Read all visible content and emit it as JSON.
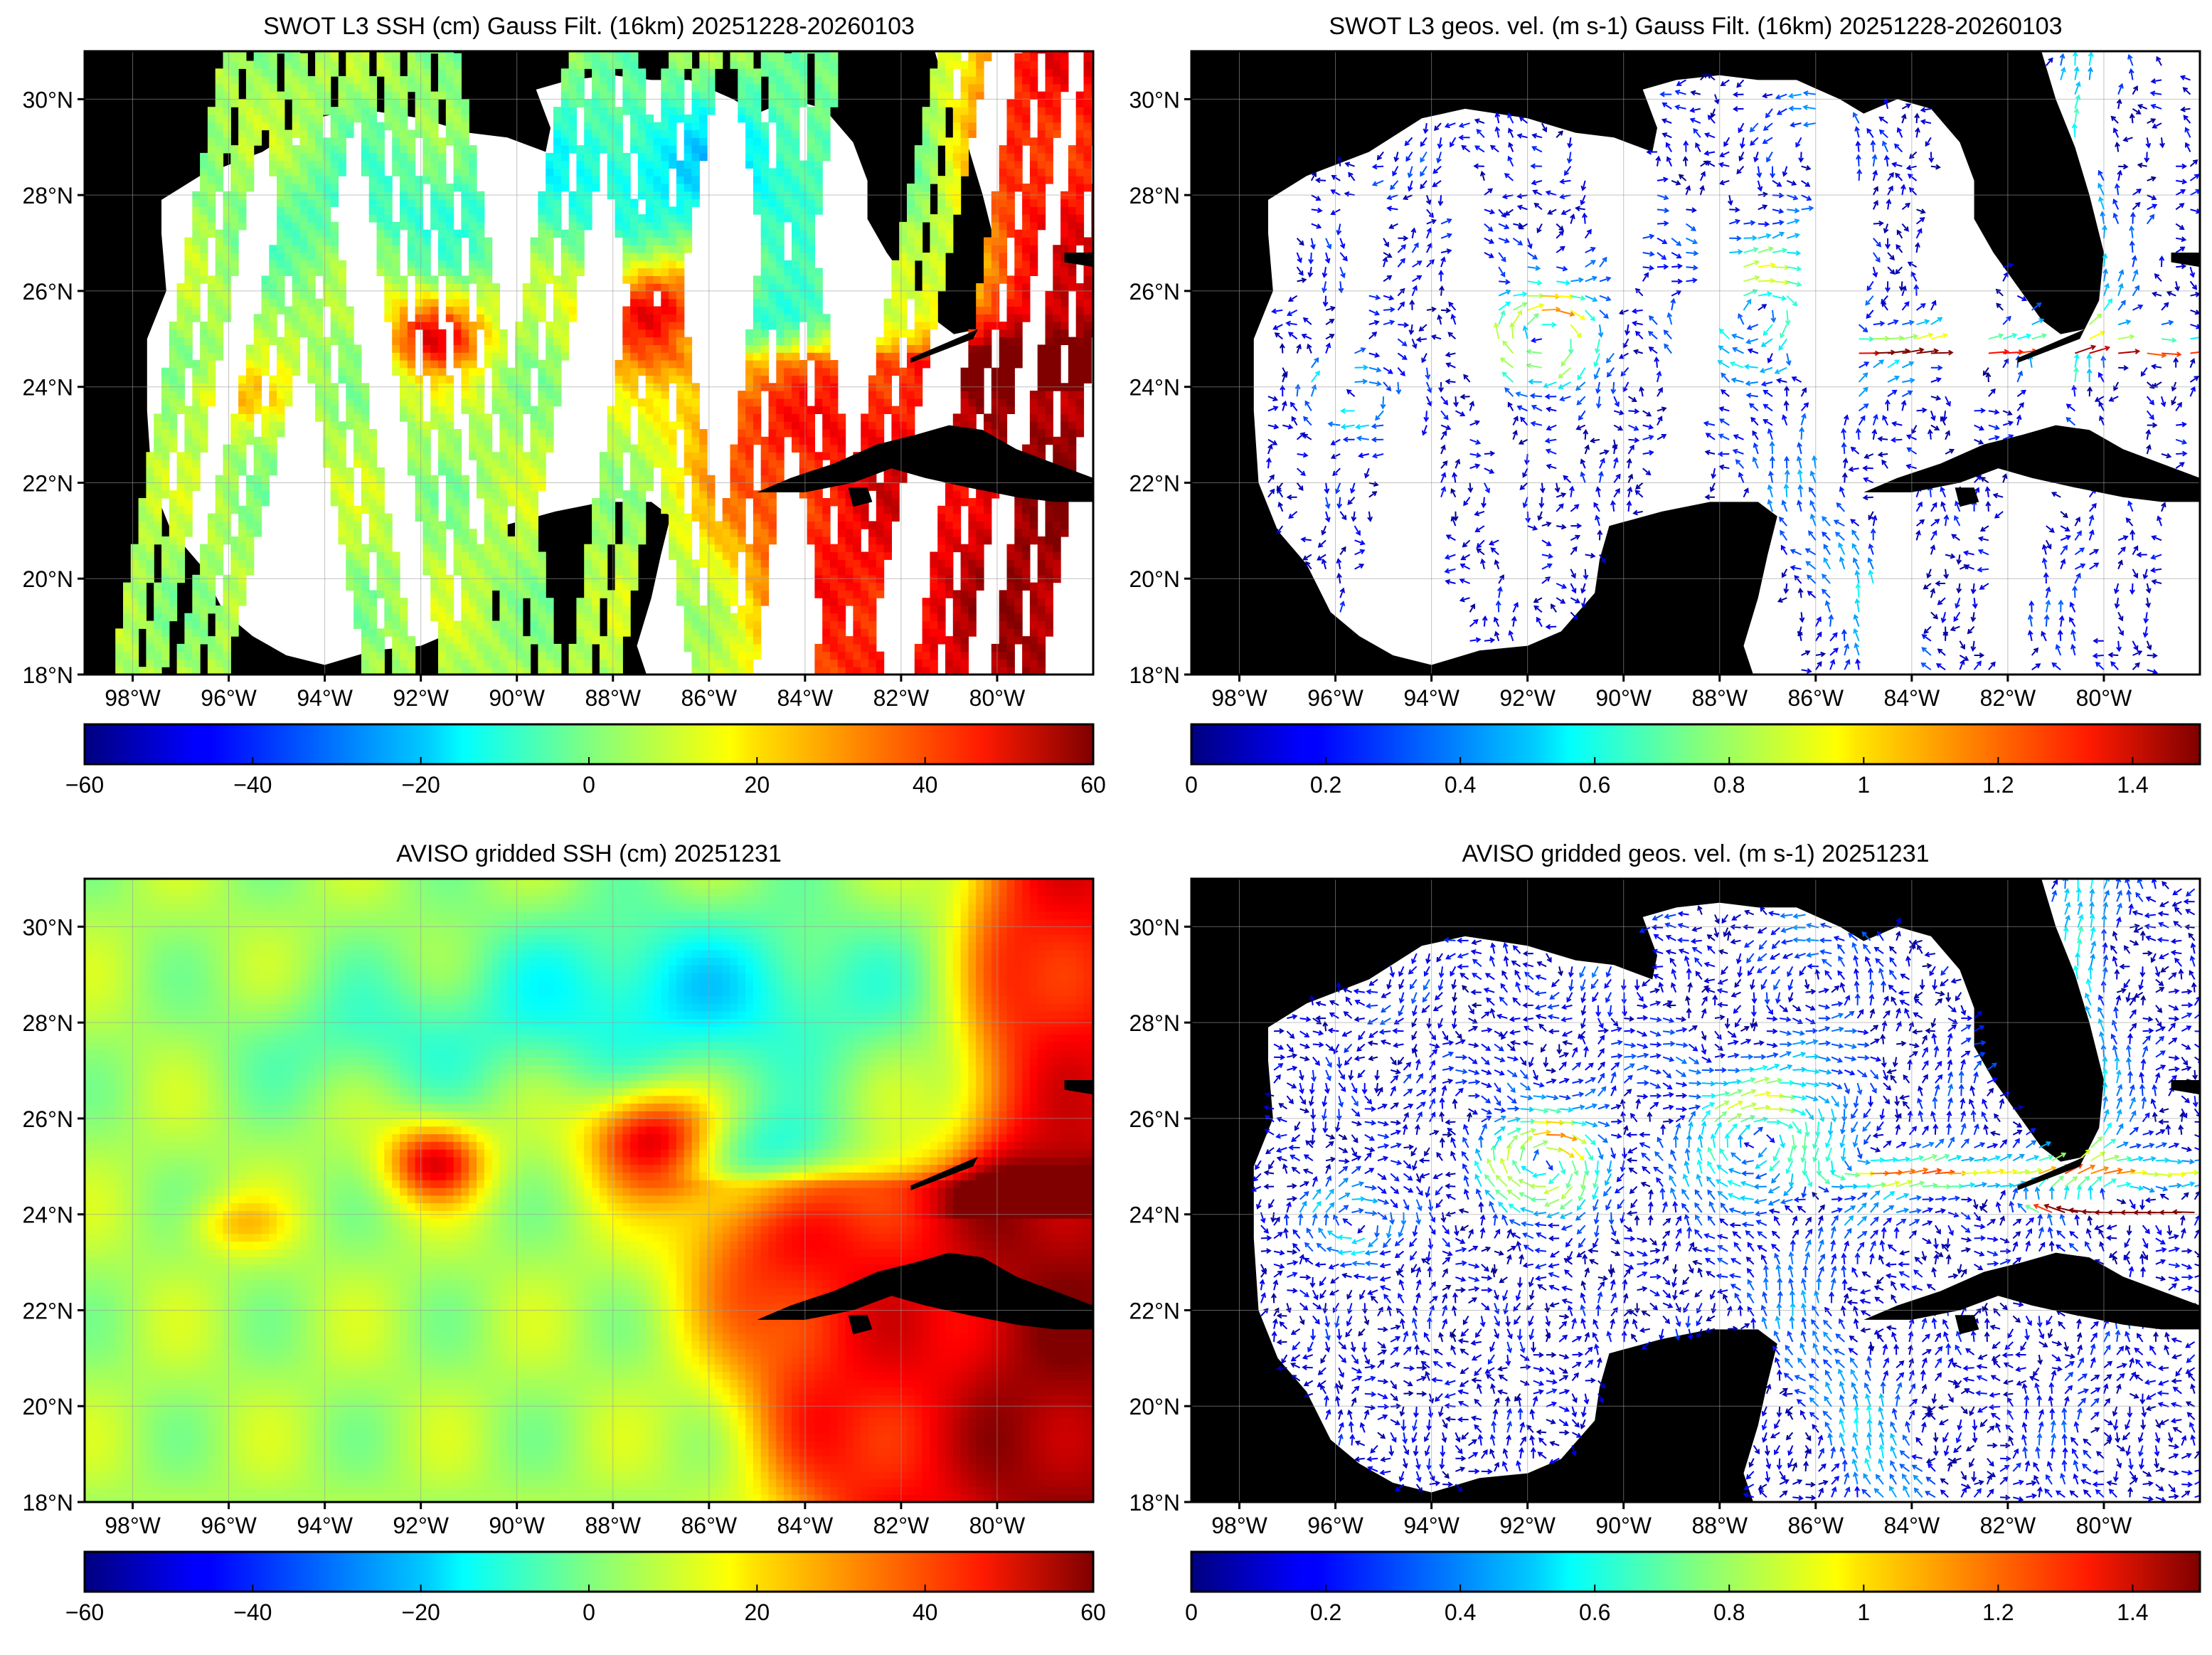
{
  "panels": [
    {
      "id": "swot-ssh",
      "title": "SWOT L3 SSH (cm) Gauss Filt. (16km) 20251228-20260103",
      "colorbar_ticks": [
        "−60",
        "−40",
        "−20",
        "0",
        "20",
        "40",
        "60"
      ],
      "colorbar_range": [
        -60,
        60
      ]
    },
    {
      "id": "swot-vel",
      "title": "SWOT L3 geos. vel. (m s-1) Gauss Filt. (16km) 20251228-20260103",
      "colorbar_ticks": [
        "0",
        "0.2",
        "0.4",
        "0.6",
        "0.8",
        "1",
        "1.2",
        "1.4"
      ],
      "colorbar_range": [
        0,
        1.5
      ]
    },
    {
      "id": "aviso-ssh",
      "title": "AVISO gridded SSH (cm) 20251231",
      "colorbar_ticks": [
        "−60",
        "−40",
        "−20",
        "0",
        "20",
        "40",
        "60"
      ],
      "colorbar_range": [
        -60,
        60
      ]
    },
    {
      "id": "aviso-vel",
      "title": "AVISO gridded geos. vel. (m s-1)  20251231",
      "colorbar_ticks": [
        "0",
        "0.2",
        "0.4",
        "0.6",
        "0.8",
        "1",
        "1.2",
        "1.4"
      ],
      "colorbar_range": [
        0,
        1.5
      ]
    }
  ],
  "map": {
    "lon_labels": [
      "98°W",
      "96°W",
      "94°W",
      "92°W",
      "90°W",
      "88°W",
      "86°W",
      "84°W",
      "82°W",
      "80°W"
    ],
    "lat_labels": [
      "18°N",
      "20°N",
      "22°N",
      "24°N",
      "26°N",
      "28°N",
      "30°N"
    ],
    "lon_range": [
      -99,
      -78
    ],
    "lat_range": [
      18,
      31
    ]
  },
  "colormap": "jet",
  "colors": {
    "land": "#000000",
    "no_data": "#ffffff",
    "grid": "#9a9a9a"
  }
}
